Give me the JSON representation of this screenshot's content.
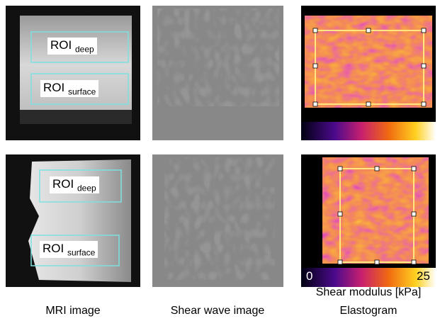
{
  "rows": [
    {
      "roi": [
        {
          "text": "ROI",
          "sub": "deep"
        },
        {
          "text": "ROI",
          "sub": "surface"
        }
      ]
    },
    {
      "roi": [
        {
          "text": "ROI",
          "sub": "deep"
        },
        {
          "text": "ROI",
          "sub": "surface"
        }
      ]
    }
  ],
  "colorbar": {
    "min": 0,
    "max": 25,
    "label": "Shear modulus [kPa]"
  },
  "captions": [
    "MRI image",
    "Shear wave image",
    "Elastogram"
  ]
}
